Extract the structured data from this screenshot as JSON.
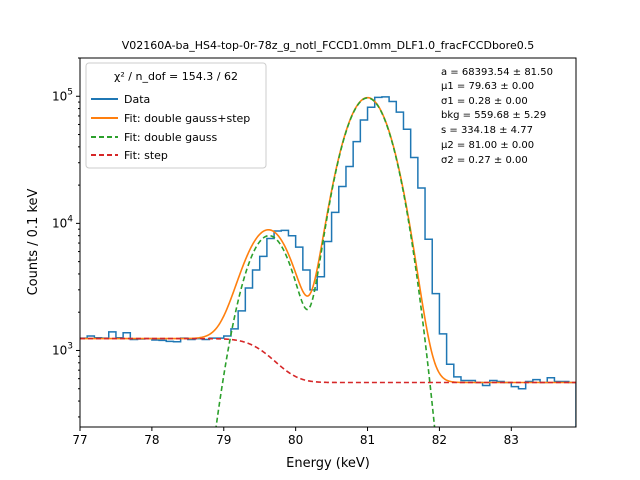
{
  "chart_data": {
    "type": "line",
    "title": "V02160A-ba_HS4-top-0r-78z_g_notl_FCCD1.0mm_DLF1.0_fracFCCDbore0.5",
    "xlabel": "Energy (keV)",
    "ylabel": "Counts / 0.1 keV",
    "xlim": [
      77.0,
      83.9
    ],
    "ylim": [
      250,
      200000
    ],
    "yscale": "log",
    "xticks": [
      "77",
      "78",
      "79",
      "80",
      "81",
      "82",
      "83"
    ],
    "yticks": [
      "10^3",
      "10^4",
      "10^5"
    ],
    "legend": {
      "title": "χ² / n_dof = 154.3 / 62",
      "location": "upper-left",
      "entries": [
        "Data",
        "Fit: double gauss+step",
        "Fit: double gauss",
        "Fit: step"
      ]
    },
    "params": [
      "a = 68393.54 ± 81.50",
      "μ1 = 79.63 ± 0.00",
      "σ1 = 0.28 ± 0.00",
      "bkg = 559.68 ± 5.29",
      "s = 334.18 ± 4.77",
      "μ2 = 81.00 ± 0.00",
      "σ2 = 0.27 ± 0.00"
    ],
    "fit_params": {
      "a": 68393.54,
      "mu1": 79.63,
      "sigma1": 0.28,
      "bkg": 559.68,
      "s": 334.18,
      "mu2": 81.0,
      "sigma2": 0.27,
      "peak1_height": 8000,
      "peak2_height": 97000,
      "step_height": 680
    },
    "series": [
      {
        "name": "Data",
        "color": "#1f77b4",
        "style": "steps",
        "bin_width": 0.1,
        "bin_start": 77.0,
        "values": [
          1250,
          1300,
          1260,
          1250,
          1400,
          1260,
          1380,
          1220,
          1230,
          1240,
          1210,
          1200,
          1180,
          1170,
          1250,
          1220,
          1240,
          1220,
          1250,
          1250,
          1300,
          1480,
          2050,
          3100,
          4300,
          5500,
          7600,
          8700,
          8800,
          8000,
          6500,
          4300,
          3000,
          3800,
          7200,
          12200,
          19500,
          28000,
          44000,
          65000,
          82000,
          98000,
          99000,
          91000,
          75000,
          55000,
          33000,
          19000,
          7500,
          2800,
          1350,
          780,
          620,
          580,
          580,
          560,
          530,
          580,
          570,
          560,
          520,
          500,
          570,
          590,
          560,
          610,
          570,
          570,
          560
        ]
      },
      {
        "name": "Fit: double gauss+step",
        "color": "#ff7f0e",
        "style": "line"
      },
      {
        "name": "Fit: double gauss",
        "color": "#2ca02c",
        "style": "dashed"
      },
      {
        "name": "Fit: step",
        "color": "#d62728",
        "style": "dashed"
      }
    ]
  }
}
